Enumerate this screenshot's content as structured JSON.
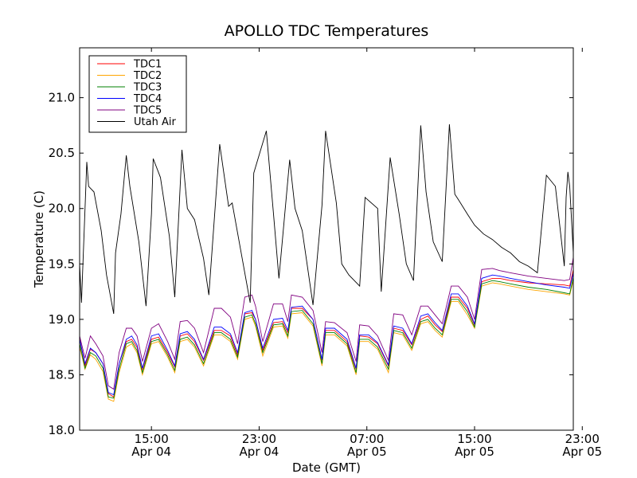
{
  "chart_data": {
    "type": "line",
    "title": "APOLLO TDC Temperatures",
    "xlabel": "Date (GMT)",
    "ylabel": "Temperature (C)",
    "xlim_hours": [
      11.0,
      38.5
    ],
    "ylim": [
      18.0,
      21.45
    ],
    "y_ticks": [
      18.0,
      18.5,
      19.0,
      19.5,
      20.0,
      20.5,
      21.0
    ],
    "y_tick_labels": [
      "18.0",
      "18.5",
      "19.0",
      "19.5",
      "20.0",
      "20.5",
      "21.0"
    ],
    "x_ticks_hours": [
      15,
      21,
      27,
      33,
      39
    ],
    "x_tick_labels": [
      [
        "15:00",
        "Apr 04"
      ],
      [
        "23:00",
        "Apr 04"
      ],
      [
        "07:00",
        "Apr 05"
      ],
      [
        "15:00",
        "Apr 05"
      ],
      [
        "23:00",
        "Apr 05"
      ]
    ],
    "legend_position": "top-left",
    "series": [
      {
        "name": "TDC1",
        "color": "#ff0000",
        "x": [
          11.0,
          11.3,
          11.6,
          11.9,
          12.3,
          12.6,
          12.9,
          13.2,
          13.6,
          13.9,
          14.2,
          14.5,
          15.0,
          15.4,
          15.9,
          16.3,
          16.6,
          17.0,
          17.4,
          17.9,
          18.5,
          18.9,
          19.4,
          19.8,
          20.2,
          20.6,
          20.8,
          21.2,
          21.8,
          22.3,
          22.6,
          22.8,
          23.4,
          24.0,
          24.5,
          24.7,
          25.2,
          25.9,
          26.4,
          26.6,
          27.1,
          27.6,
          28.2,
          28.5,
          29.0,
          29.5,
          30.0,
          30.4,
          30.8,
          31.2,
          31.7,
          32.1,
          32.6,
          33.0,
          33.4,
          34.0,
          34.4,
          35.0,
          36.0,
          37.0,
          38.0,
          38.3,
          38.5
        ],
        "values": [
          18.83,
          18.58,
          18.73,
          18.7,
          18.6,
          18.33,
          18.3,
          18.6,
          18.8,
          18.82,
          18.75,
          18.55,
          18.82,
          18.84,
          18.7,
          18.57,
          18.85,
          18.87,
          18.8,
          18.63,
          18.9,
          18.9,
          18.85,
          18.68,
          19.05,
          19.06,
          19.0,
          18.72,
          18.97,
          18.98,
          18.88,
          19.1,
          19.1,
          19.0,
          18.63,
          18.9,
          18.9,
          18.8,
          18.55,
          18.85,
          18.84,
          18.78,
          18.58,
          18.92,
          18.9,
          18.77,
          19.0,
          19.03,
          18.95,
          18.89,
          19.2,
          19.2,
          19.1,
          18.95,
          19.34,
          19.37,
          19.37,
          19.35,
          19.33,
          19.32,
          19.31,
          19.3,
          19.45
        ]
      },
      {
        "name": "TDC2",
        "color": "#ffa500",
        "x": [
          11.0,
          11.3,
          11.6,
          11.9,
          12.3,
          12.6,
          12.9,
          13.2,
          13.6,
          13.9,
          14.2,
          14.5,
          15.0,
          15.4,
          15.9,
          16.3,
          16.6,
          17.0,
          17.4,
          17.9,
          18.5,
          18.9,
          19.4,
          19.8,
          20.2,
          20.6,
          20.8,
          21.2,
          21.8,
          22.3,
          22.6,
          22.8,
          23.4,
          24.0,
          24.5,
          24.7,
          25.2,
          25.9,
          26.4,
          26.6,
          27.1,
          27.6,
          28.2,
          28.5,
          29.0,
          29.5,
          30.0,
          30.4,
          30.8,
          31.2,
          31.7,
          32.1,
          32.6,
          33.0,
          33.4,
          34.0,
          34.4,
          35.0,
          36.0,
          37.0,
          38.0,
          38.3,
          38.5
        ],
        "values": [
          18.75,
          18.55,
          18.68,
          18.64,
          18.53,
          18.28,
          18.26,
          18.52,
          18.75,
          18.78,
          18.7,
          18.5,
          18.78,
          18.8,
          18.66,
          18.52,
          18.8,
          18.82,
          18.75,
          18.58,
          18.86,
          18.86,
          18.8,
          18.64,
          19.0,
          19.02,
          18.94,
          18.67,
          18.93,
          18.94,
          18.83,
          19.05,
          19.06,
          18.94,
          18.58,
          18.86,
          18.86,
          18.76,
          18.5,
          18.8,
          18.8,
          18.73,
          18.52,
          18.88,
          18.86,
          18.72,
          18.96,
          18.98,
          18.9,
          18.84,
          19.16,
          19.16,
          19.04,
          18.92,
          19.3,
          19.33,
          19.32,
          19.3,
          19.27,
          19.25,
          19.23,
          19.22,
          19.35
        ]
      },
      {
        "name": "TDC3",
        "color": "#008000",
        "x": [
          11.0,
          11.3,
          11.6,
          11.9,
          12.3,
          12.6,
          12.9,
          13.2,
          13.6,
          13.9,
          14.2,
          14.5,
          15.0,
          15.4,
          15.9,
          16.3,
          16.6,
          17.0,
          17.4,
          17.9,
          18.5,
          18.9,
          19.4,
          19.8,
          20.2,
          20.6,
          20.8,
          21.2,
          21.8,
          22.3,
          22.6,
          22.8,
          23.4,
          24.0,
          24.5,
          24.7,
          25.2,
          25.9,
          26.4,
          26.6,
          27.1,
          27.6,
          28.2,
          28.5,
          29.0,
          29.5,
          30.0,
          30.4,
          30.8,
          31.2,
          31.7,
          32.1,
          32.6,
          33.0,
          33.4,
          34.0,
          34.4,
          35.0,
          36.0,
          37.0,
          38.0,
          38.3,
          38.5
        ],
        "values": [
          18.78,
          18.56,
          18.7,
          18.67,
          18.56,
          18.3,
          18.29,
          18.55,
          18.78,
          18.8,
          18.72,
          18.52,
          18.8,
          18.82,
          18.68,
          18.54,
          18.82,
          18.84,
          18.77,
          18.6,
          18.88,
          18.88,
          18.82,
          18.66,
          19.02,
          19.04,
          18.96,
          18.7,
          18.95,
          18.96,
          18.85,
          19.07,
          19.08,
          18.96,
          18.6,
          18.88,
          18.88,
          18.78,
          18.52,
          18.82,
          18.82,
          18.75,
          18.55,
          18.9,
          18.88,
          18.74,
          18.98,
          19.0,
          18.92,
          18.86,
          19.18,
          19.18,
          19.07,
          18.93,
          19.32,
          19.35,
          19.34,
          19.32,
          19.29,
          19.27,
          19.24,
          19.23,
          19.38
        ]
      },
      {
        "name": "TDC4",
        "color": "#0000ff",
        "x": [
          11.0,
          11.3,
          11.6,
          11.9,
          12.3,
          12.6,
          12.9,
          13.2,
          13.6,
          13.9,
          14.2,
          14.5,
          15.0,
          15.4,
          15.9,
          16.3,
          16.6,
          17.0,
          17.4,
          17.9,
          18.5,
          18.9,
          19.4,
          19.8,
          20.2,
          20.6,
          20.8,
          21.2,
          21.8,
          22.3,
          22.6,
          22.8,
          23.4,
          24.0,
          24.5,
          24.7,
          25.2,
          25.9,
          26.4,
          26.6,
          27.1,
          27.6,
          28.2,
          28.5,
          29.0,
          29.5,
          30.0,
          30.4,
          30.8,
          31.2,
          31.7,
          32.1,
          32.6,
          33.0,
          33.4,
          34.0,
          34.4,
          35.0,
          36.0,
          37.0,
          38.0,
          38.3,
          38.5
        ],
        "values": [
          18.82,
          18.6,
          18.74,
          18.7,
          18.6,
          18.34,
          18.32,
          18.6,
          18.82,
          18.85,
          18.77,
          18.56,
          18.85,
          18.87,
          18.72,
          18.58,
          18.87,
          18.89,
          18.82,
          18.64,
          18.93,
          18.93,
          18.87,
          18.7,
          19.06,
          19.08,
          19.0,
          18.74,
          19.0,
          19.01,
          18.9,
          19.11,
          19.12,
          19.0,
          18.64,
          18.92,
          18.92,
          18.82,
          18.56,
          18.86,
          18.86,
          18.79,
          18.59,
          18.94,
          18.92,
          18.78,
          19.03,
          19.05,
          18.97,
          18.9,
          19.23,
          19.23,
          19.12,
          18.96,
          19.37,
          19.4,
          19.39,
          19.37,
          19.34,
          19.31,
          19.29,
          19.28,
          19.42
        ]
      },
      {
        "name": "TDC5",
        "color": "#800080",
        "x": [
          11.0,
          11.3,
          11.6,
          11.9,
          12.3,
          12.6,
          12.9,
          13.2,
          13.6,
          13.9,
          14.2,
          14.5,
          15.0,
          15.4,
          15.9,
          16.3,
          16.6,
          17.0,
          17.4,
          17.9,
          18.5,
          18.9,
          19.4,
          19.8,
          20.2,
          20.6,
          20.8,
          21.2,
          21.8,
          22.3,
          22.6,
          22.8,
          23.4,
          24.0,
          24.5,
          24.7,
          25.2,
          25.9,
          26.4,
          26.6,
          27.1,
          27.6,
          28.2,
          28.5,
          29.0,
          29.5,
          30.0,
          30.4,
          30.8,
          31.2,
          31.7,
          32.1,
          32.6,
          33.0,
          33.4,
          34.0,
          34.4,
          35.0,
          36.0,
          37.0,
          38.0,
          38.3,
          38.5
        ],
        "values": [
          18.85,
          18.65,
          18.85,
          18.78,
          18.67,
          18.4,
          18.37,
          18.7,
          18.92,
          18.92,
          18.85,
          18.62,
          18.92,
          18.96,
          18.8,
          18.64,
          18.98,
          18.99,
          18.92,
          18.7,
          19.1,
          19.1,
          19.02,
          18.78,
          19.2,
          19.22,
          19.12,
          18.8,
          19.14,
          19.14,
          18.98,
          19.22,
          19.2,
          19.08,
          18.7,
          18.98,
          18.97,
          18.88,
          18.62,
          18.95,
          18.94,
          18.85,
          18.63,
          19.05,
          19.04,
          18.86,
          19.12,
          19.12,
          19.04,
          18.96,
          19.3,
          19.3,
          19.2,
          19.0,
          19.45,
          19.46,
          19.44,
          19.42,
          19.39,
          19.37,
          19.35,
          19.36,
          19.56
        ]
      },
      {
        "name": "Utah Air",
        "color": "#000000",
        "x": [
          11.0,
          11.1,
          11.4,
          11.5,
          11.8,
          12.2,
          12.5,
          12.9,
          13.0,
          13.3,
          13.6,
          13.8,
          14.3,
          14.7,
          15.0,
          15.1,
          15.5,
          16.0,
          16.3,
          16.7,
          17.0,
          17.4,
          17.9,
          18.2,
          18.8,
          19.3,
          19.5,
          20.0,
          20.5,
          20.7,
          21.4,
          21.8,
          22.1,
          22.7,
          23.0,
          23.4,
          24.0,
          24.5,
          24.7,
          25.3,
          25.6,
          26.0,
          26.6,
          26.9,
          27.6,
          27.8,
          28.3,
          28.8,
          29.2,
          29.6,
          30.0,
          30.3,
          30.7,
          31.2,
          31.6,
          31.9,
          32.1,
          32.6,
          33.0,
          33.5,
          34.0,
          34.5,
          35.0,
          35.5,
          36.0,
          36.5,
          37.0,
          37.5,
          38.0,
          38.1,
          38.2,
          38.3,
          38.5
        ],
        "values": [
          19.5,
          19.15,
          20.42,
          20.2,
          20.15,
          19.8,
          19.4,
          19.05,
          19.6,
          19.95,
          20.48,
          20.2,
          19.7,
          19.12,
          19.95,
          20.45,
          20.28,
          19.75,
          19.2,
          20.53,
          20.0,
          19.9,
          19.55,
          19.22,
          20.58,
          20.02,
          20.05,
          19.6,
          19.15,
          20.32,
          20.7,
          19.95,
          19.37,
          20.44,
          20.0,
          19.8,
          19.13,
          20.03,
          20.7,
          20.05,
          19.5,
          19.4,
          19.3,
          20.1,
          20.0,
          19.25,
          20.46,
          19.95,
          19.5,
          19.35,
          20.75,
          20.15,
          19.7,
          19.52,
          20.76,
          20.13,
          20.08,
          19.95,
          19.85,
          19.77,
          19.72,
          19.65,
          19.6,
          19.52,
          19.48,
          19.42,
          20.3,
          20.2,
          19.48,
          20.1,
          20.33,
          20.2,
          19.6
        ]
      }
    ]
  }
}
